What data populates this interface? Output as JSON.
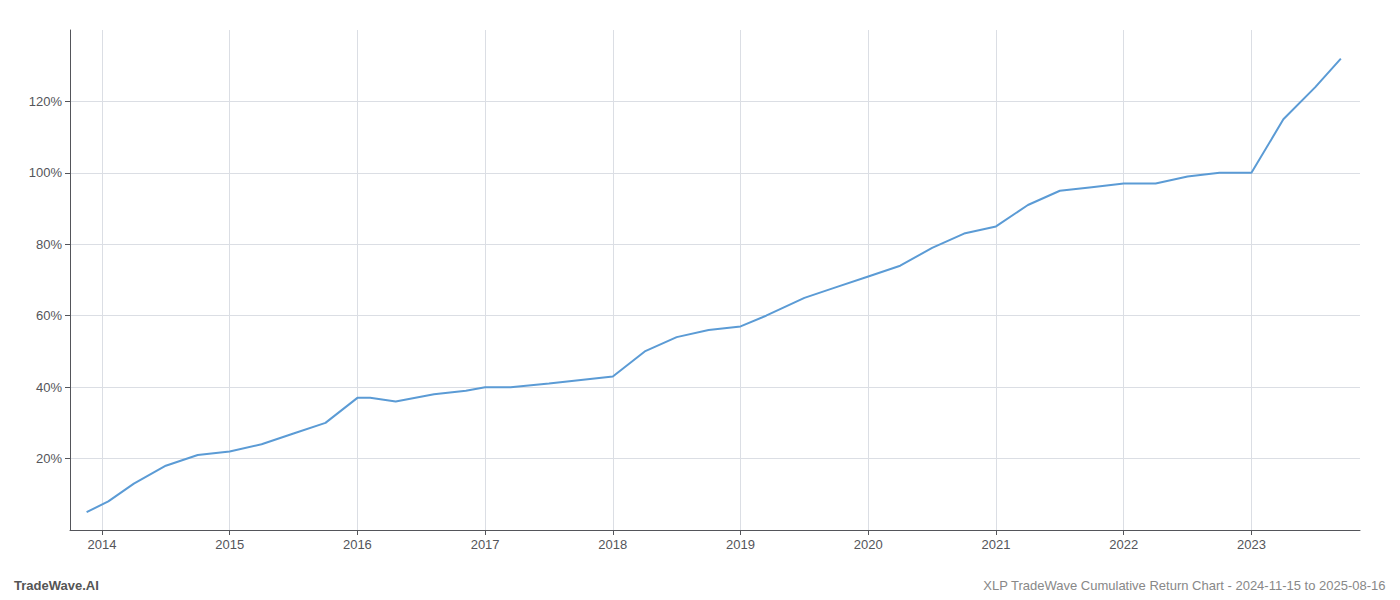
{
  "chart_data": {
    "type": "line",
    "x": [
      2013.88,
      2014.05,
      2014.25,
      2014.5,
      2014.75,
      2015.0,
      2015.25,
      2015.5,
      2015.75,
      2016.0,
      2016.1,
      2016.3,
      2016.6,
      2016.85,
      2017.0,
      2017.2,
      2017.5,
      2017.75,
      2018.0,
      2018.25,
      2018.5,
      2018.75,
      2019.0,
      2019.2,
      2019.5,
      2019.75,
      2020.0,
      2020.25,
      2020.5,
      2020.75,
      2021.0,
      2021.25,
      2021.5,
      2021.75,
      2022.0,
      2022.25,
      2022.5,
      2022.75,
      2023.0,
      2023.25,
      2023.5,
      2023.7
    ],
    "values": [
      5,
      8,
      13,
      18,
      21,
      22,
      24,
      27,
      30,
      37,
      37,
      36,
      38,
      39,
      40,
      40,
      41,
      42,
      43,
      50,
      54,
      56,
      57,
      60,
      65,
      68,
      71,
      74,
      79,
      83,
      85,
      91,
      95,
      96,
      97,
      97,
      99,
      100,
      100,
      115,
      124,
      132
    ],
    "color": "#5b9bd5",
    "xlim": [
      2013.75,
      2023.85
    ],
    "xticks": [
      2014,
      2015,
      2016,
      2017,
      2018,
      2019,
      2020,
      2021,
      2022,
      2023
    ],
    "ylim": [
      0,
      140
    ],
    "yticks": [
      {
        "value": 20,
        "label": "20%"
      },
      {
        "value": 40,
        "label": "40%"
      },
      {
        "value": 60,
        "label": "60%"
      },
      {
        "value": 80,
        "label": "80%"
      },
      {
        "value": 100,
        "label": "100%"
      },
      {
        "value": 120,
        "label": "120%"
      }
    ],
    "grid": true,
    "annotations": [
      "TradeWave.AI",
      "XLP TradeWave Cumulative Return Chart - 2024-11-15 to 2025-08-16"
    ]
  }
}
